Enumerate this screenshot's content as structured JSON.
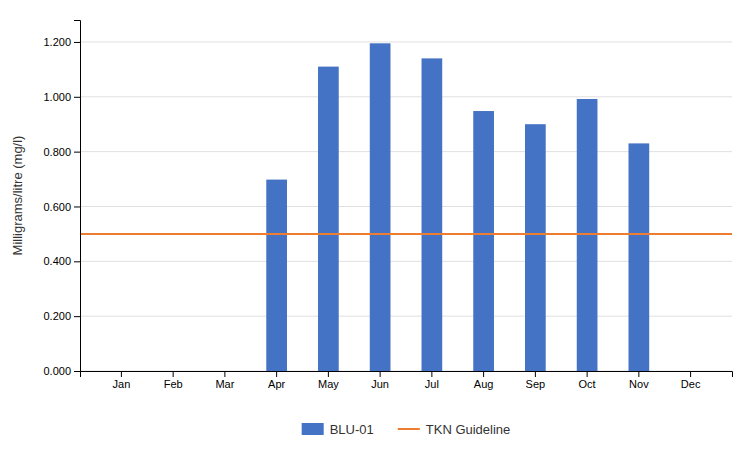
{
  "chart_data": {
    "type": "bar",
    "categories": [
      "Jan",
      "Feb",
      "Mar",
      "Apr",
      "May",
      "Jun",
      "Jul",
      "Aug",
      "Sep",
      "Oct",
      "Nov",
      "Dec"
    ],
    "series": [
      {
        "name": "BLU-01",
        "color": "#4472C4",
        "values": [
          0,
          0,
          0,
          0.698,
          1.11,
          1.195,
          1.14,
          0.948,
          0.9,
          0.992,
          0.83,
          0
        ]
      }
    ],
    "guideline": {
      "name": "TKN Guideline",
      "color": "#ED7D31",
      "value": 0.5
    },
    "y_label": "Milligrams/litre (mg/l)",
    "ylim": [
      0,
      1.28
    ],
    "yticks": [
      {
        "value": 0.0,
        "label": "0.000"
      },
      {
        "value": 0.2,
        "label": "0.200"
      },
      {
        "value": 0.4,
        "label": "0.400"
      },
      {
        "value": 0.6,
        "label": "0.600"
      },
      {
        "value": 0.8,
        "label": "0.800"
      },
      {
        "value": 1.0,
        "label": "1.000"
      },
      {
        "value": 1.2,
        "label": "1.200"
      }
    ],
    "grid": true,
    "legend": "bottom"
  }
}
